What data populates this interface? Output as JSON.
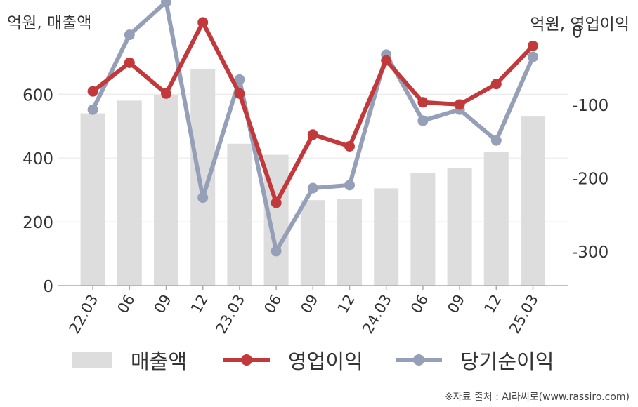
{
  "units": {
    "left": "억원, 매출액",
    "right": "억원, 영업이익"
  },
  "legend": {
    "bar": "매출액",
    "line1": "영업이익",
    "line2": "당기순이익"
  },
  "source": "※자료 출처 : AI라씨로(www.rassiro.com)",
  "colors": {
    "bar": "#dddddd",
    "operating": "#c1393a",
    "net": "#95a0b8",
    "axis": "#aaaaaa",
    "grid": "#e6e6e6",
    "text": "#333333"
  },
  "chart_data": {
    "type": "bar",
    "categories": [
      "22.03",
      "06",
      "09",
      "12",
      "23.03",
      "06",
      "09",
      "12",
      "24.03",
      "06",
      "09",
      "12",
      "25.03"
    ],
    "y_left": {
      "ticks": [
        0,
        200,
        400,
        600
      ],
      "range": [
        0,
        770
      ]
    },
    "y_right": {
      "ticks": [
        0,
        -100,
        -200,
        -300
      ],
      "range": [
        -347,
        -12
      ]
    },
    "series": [
      {
        "name": "매출액",
        "type": "bar",
        "axis": "left",
        "values": [
          540,
          580,
          598,
          680,
          445,
          410,
          268,
          272,
          305,
          352,
          368,
          420,
          530
        ]
      },
      {
        "name": "영업이익",
        "type": "line",
        "axis": "right",
        "values": [
          -82,
          -43,
          -85,
          12,
          -85,
          -234,
          -141,
          -157,
          -40,
          -97,
          -100,
          -72,
          -20
        ]
      },
      {
        "name": "당기순이익",
        "type": "line",
        "axis": "right",
        "values": [
          -107,
          -5,
          40,
          -227,
          -66,
          -300,
          -214,
          -210,
          -32,
          -122,
          -107,
          -149,
          -35
        ]
      }
    ]
  }
}
